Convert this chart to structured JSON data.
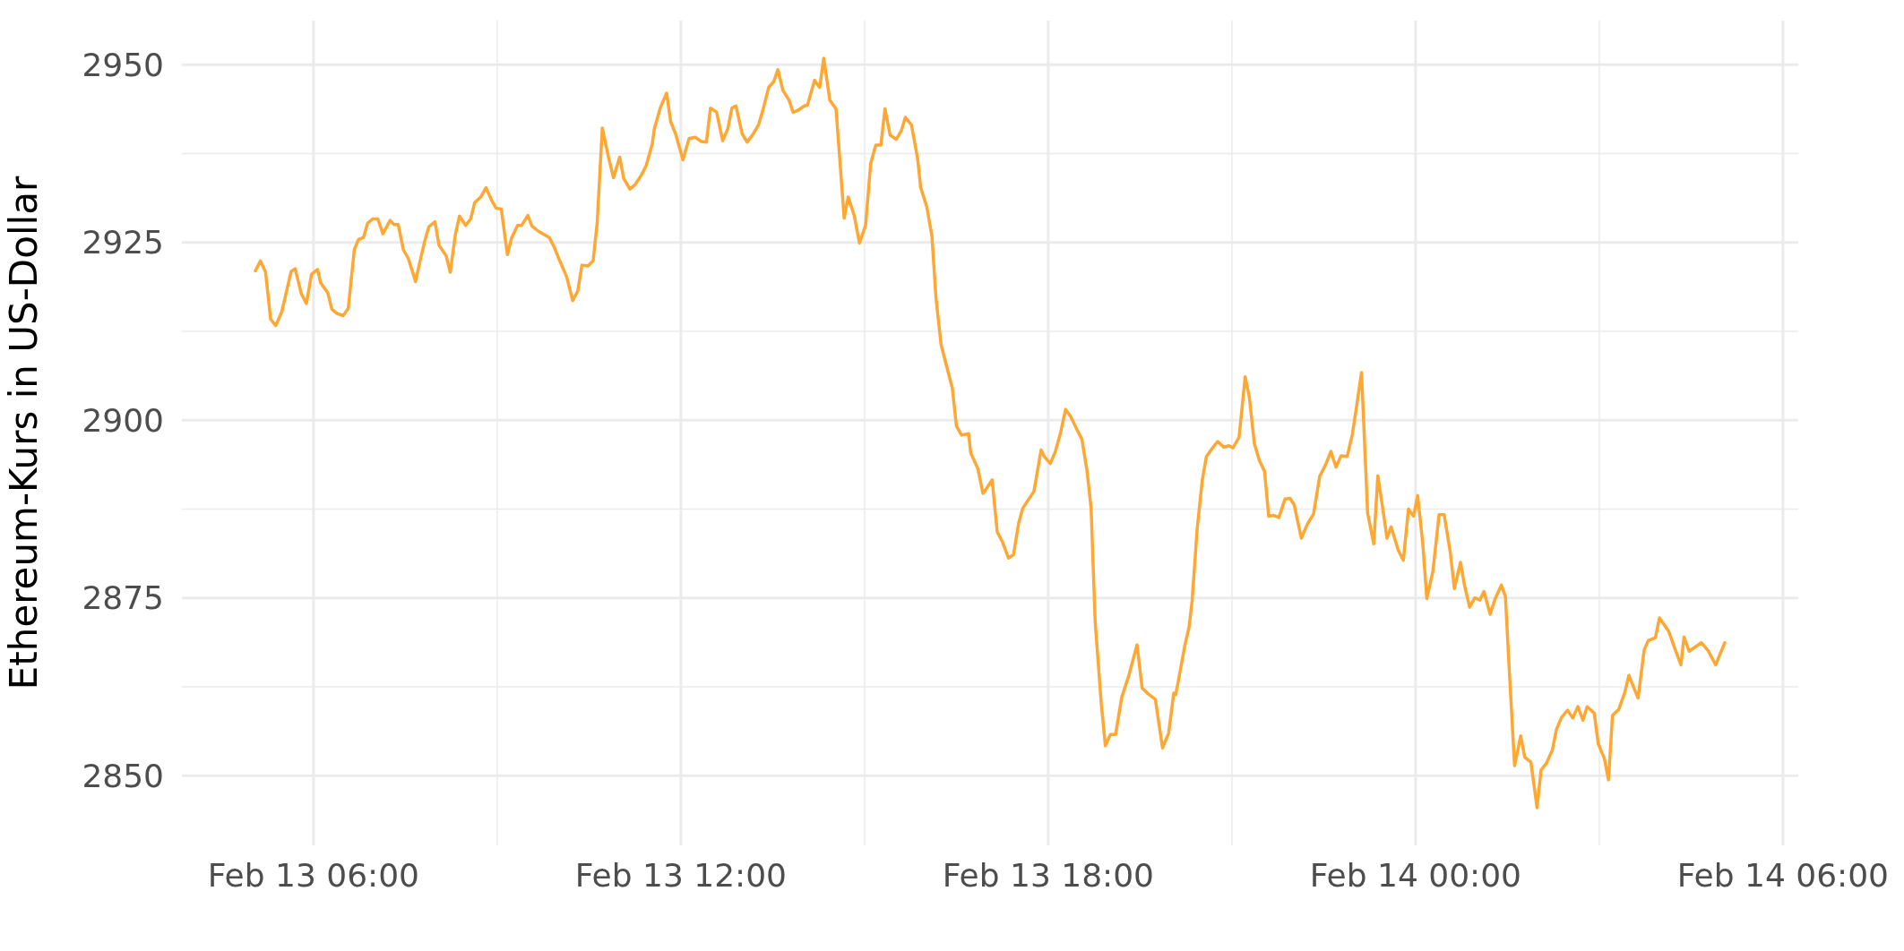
{
  "chart_data": {
    "type": "line",
    "ylabel": "Ethereum-Kurs in US-Dollar",
    "xlim": [
      "--02-13T03:51",
      "--02-14T06:15"
    ],
    "xticks": [
      {
        "value": "--02-13T06:00",
        "label": "Feb 13 06:00"
      },
      {
        "value": "--02-13T09:00",
        "label": null
      },
      {
        "value": "--02-13T12:00",
        "label": "Feb 13 12:00"
      },
      {
        "value": "--02-13T15:00",
        "label": null
      },
      {
        "value": "--02-13T18:00",
        "label": "Feb 13 18:00"
      },
      {
        "value": "--02-13T21:00",
        "label": null
      },
      {
        "value": "--02-14T00:00",
        "label": "Feb 14 00:00"
      },
      {
        "value": "--02-14T03:00",
        "label": null
      },
      {
        "value": "--02-14T06:00",
        "label": "Feb 14 06:00"
      }
    ],
    "ylim": [
      2840.2,
      2956.2
    ],
    "yticks": [
      2850,
      {
        "value": 2862.5,
        "label": null
      },
      2875,
      {
        "value": 2887.5,
        "label": null
      },
      2900,
      {
        "value": 2912.5,
        "label": null
      },
      2925,
      {
        "value": 2937.5,
        "label": null
      },
      2950
    ],
    "grid": true,
    "x": [
      "--02-13T05:03",
      "--02-13T05:08",
      "--02-13T05:13",
      "--02-13T05:18",
      "--02-13T05:23",
      "--02-13T05:29",
      "--02-13T05:38",
      "--02-13T05:42",
      "--02-13T05:48",
      "--02-13T05:53",
      "--02-13T05:58",
      "--02-13T06:04",
      "--02-13T06:07",
      "--02-13T06:14",
      "--02-13T06:18",
      "--02-13T06:23",
      "--02-13T06:29",
      "--02-13T06:34",
      "--02-13T06:40",
      "--02-13T06:44",
      "--02-13T06:49",
      "--02-13T06:53",
      "--02-13T06:58",
      "--02-13T07:03",
      "--02-13T07:08",
      "--02-13T07:15",
      "--02-13T07:19",
      "--02-13T07:23",
      "--02-13T07:28",
      "--02-13T07:33",
      "--02-13T07:40",
      "--02-13T07:44",
      "--02-13T07:49",
      "--02-13T07:53",
      "--02-13T07:59",
      "--02-13T08:03",
      "--02-13T08:10",
      "--02-13T08:14",
      "--02-13T08:19",
      "--02-13T08:23",
      "--02-13T08:29",
      "--02-13T08:34",
      "--02-13T08:38",
      "--02-13T08:44",
      "--02-13T08:49",
      "--02-13T08:55",
      "--02-13T08:59",
      "--02-13T09:04",
      "--02-13T09:10",
      "--02-13T09:14",
      "--02-13T09:20",
      "--02-13T09:24",
      "--02-13T09:30",
      "--02-13T09:34",
      "--02-13T09:40",
      "--02-13T09:45",
      "--02-13T09:51",
      "--02-13T09:56",
      "--02-13T10:01",
      "--02-13T10:08",
      "--02-13T10:14",
      "--02-13T10:19",
      "--02-13T10:23",
      "--02-13T10:29",
      "--02-13T10:34",
      "--02-13T10:38",
      "--02-13T10:43",
      "--02-13T10:49",
      "--02-13T10:54",
      "--02-13T11:00",
      "--02-13T11:04",
      "--02-13T11:10",
      "--02-13T11:15",
      "--02-13T11:21",
      "--02-13T11:26",
      "--02-13T11:32",
      "--02-13T11:34",
      "--02-13T11:40",
      "--02-13T11:46",
      "--02-13T11:50",
      "--02-13T11:55",
      "--02-13T12:02",
      "--02-13T12:08",
      "--02-13T12:14",
      "--02-13T12:20",
      "--02-13T12:25",
      "--02-13T12:29",
      "--02-13T12:35",
      "--02-13T12:41",
      "--02-13T12:46",
      "--02-13T12:50",
      "--02-13T12:54",
      "--02-13T13:00",
      "--02-13T13:05",
      "--02-13T13:11",
      "--02-13T13:16",
      "--02-13T13:20",
      "--02-13T13:26",
      "--02-13T13:31",
      "--02-13T13:35",
      "--02-13T13:40",
      "--02-13T13:46",
      "--02-13T13:50",
      "--02-13T13:55",
      "--02-13T14:01",
      "--02-13T14:04",
      "--02-13T14:11",
      "--02-13T14:16",
      "--02-13T14:20",
      "--02-13T14:26",
      "--02-13T14:32",
      "--02-13T14:35",
      "--02-13T14:40",
      "--02-13T14:44",
      "--02-13T14:50",
      "--02-13T14:55",
      "--02-13T15:01",
      "--02-13T15:06",
      "--02-13T15:11",
      "--02-13T15:16",
      "--02-13T15:20",
      "--02-13T15:25",
      "--02-13T15:31",
      "--02-13T15:36",
      "--02-13T15:40",
      "--02-13T15:46",
      "--02-13T15:52",
      "--02-13T15:55",
      "--02-13T16:01",
      "--02-13T16:06",
      "--02-13T16:10",
      "--02-13T16:15",
      "--02-13T16:22",
      "--02-13T16:26",
      "--02-13T16:30",
      "--02-13T16:35",
      "--02-13T16:42",
      "--02-13T16:44",
      "--02-13T16:51",
      "--02-13T16:56",
      "--02-13T17:01",
      "--02-13T17:05",
      "--02-13T17:10",
      "--02-13T17:15",
      "--02-13T17:21",
      "--02-13T17:26",
      "--02-13T17:31",
      "--02-13T17:35",
      "--02-13T17:46",
      "--02-13T17:53",
      "--02-13T17:56",
      "--02-13T18:02",
      "--02-13T18:07",
      "--02-13T18:12",
      "--02-13T18:17",
      "--02-13T18:22",
      "--02-13T18:28",
      "--02-13T18:33",
      "--02-13T18:38",
      "--02-13T18:42",
      "--02-13T18:46",
      "--02-13T18:52",
      "--02-13T18:56",
      "--02-13T19:01",
      "--02-13T19:06",
      "--02-13T19:12",
      "--02-13T19:19",
      "--02-13T19:27",
      "--02-13T19:32",
      "--02-13T19:38",
      "--02-13T19:45",
      "--02-13T19:52",
      "--02-13T19:58",
      "--02-13T20:03",
      "--02-13T20:05",
      "--02-13T20:14",
      "--02-13T20:18",
      "--02-13T20:21",
      "--02-13T20:26",
      "--02-13T20:31",
      "--02-13T20:35",
      "--02-13T20:41",
      "--02-13T20:46",
      "--02-13T20:52",
      "--02-13T20:57",
      "--02-13T21:01",
      "--02-13T21:07",
      "--02-13T21:13",
      "--02-13T21:17",
      "--02-13T21:22",
      "--02-13T21:27",
      "--02-13T21:32",
      "--02-13T21:36",
      "--02-13T21:41",
      "--02-13T21:46",
      "--02-13T21:52",
      "--02-13T21:57",
      "--02-13T22:01",
      "--02-13T22:08",
      "--02-13T22:14",
      "--02-13T22:20",
      "--02-13T22:26",
      "--02-13T22:32",
      "--02-13T22:37",
      "--02-13T22:42",
      "--02-13T22:47",
      "--02-13T22:53",
      "--02-13T22:58",
      "--02-13T23:02",
      "--02-13T23:07",
      "--02-13T23:13",
      "--02-13T23:19",
      "--02-13T23:23",
      "--02-13T23:28",
      "--02-13T23:32",
      "--02-13T23:36",
      "--02-13T23:43",
      "--02-13T23:48",
      "--02-13T23:53",
      "--02-13T23:58",
      "--02-14T00:02",
      "--02-14T00:07",
      "--02-14T00:11",
      "--02-14T00:17",
      "--02-14T00:23",
      "--02-14T00:28",
      "--02-14T00:34",
      "--02-14T00:38",
      "--02-14T00:44",
      "--02-14T00:48",
      "--02-14T00:53",
      "--02-14T00:58",
      "--02-14T01:03",
      "--02-14T01:07",
      "--02-14T01:13",
      "--02-14T01:18",
      "--02-14T01:24",
      "--02-14T01:28",
      "--02-14T01:32",
      "--02-14T01:37",
      "--02-14T01:43",
      "--02-14T01:47",
      "--02-14T01:53",
      "--02-14T01:59",
      "--02-14T02:03",
      "--02-14T02:08",
      "--02-14T02:14",
      "--02-14T02:18",
      "--02-14T02:23",
      "--02-14T02:29",
      "--02-14T02:34",
      "--02-14T02:39",
      "--02-14T02:44",
      "--02-14T02:48",
      "--02-14T02:55",
      "--02-14T02:59",
      "--02-14T03:05",
      "--02-14T03:09",
      "--02-14T03:13",
      "--02-14T03:19",
      "--02-14T03:25",
      "--02-14T03:29",
      "--02-14T03:38",
      "--02-14T03:44",
      "--02-14T03:48",
      "--02-14T03:55",
      "--02-14T03:59",
      "--02-14T04:08",
      "--02-14T04:14",
      "--02-14T04:20",
      "--02-14T04:23",
      "--02-14T04:28",
      "--02-14T04:40",
      "--02-14T04:47",
      "--02-14T04:54",
      "--02-14T05:03"
    ],
    "series": [
      {
        "color": "#ffa733",
        "values": [
          2921.0,
          2922.4,
          2920.8,
          2914.2,
          2913.3,
          2915.3,
          2920.9,
          2921.3,
          2917.8,
          2916.4,
          2920.5,
          2921.2,
          2919.3,
          2917.9,
          2915.6,
          2915.0,
          2914.7,
          2915.7,
          2924.0,
          2925.4,
          2925.7,
          2927.7,
          2928.3,
          2928.3,
          2926.2,
          2928.1,
          2927.5,
          2927.5,
          2924.0,
          2922.7,
          2919.5,
          2922.1,
          2925.2,
          2927.2,
          2927.9,
          2924.6,
          2923.1,
          2920.8,
          2926.1,
          2928.7,
          2927.4,
          2928.3,
          2930.6,
          2931.4,
          2932.7,
          2930.8,
          2929.8,
          2929.7,
          2923.3,
          2925.6,
          2927.4,
          2927.4,
          2928.8,
          2927.3,
          2926.6,
          2926.2,
          2925.7,
          2924.3,
          2922.5,
          2920.2,
          2916.8,
          2918.2,
          2921.8,
          2921.7,
          2922.4,
          2927.8,
          2941.1,
          2937.0,
          2934.1,
          2937.0,
          2934.0,
          2932.5,
          2933.1,
          2934.4,
          2935.8,
          2938.9,
          2941.0,
          2944.0,
          2946.0,
          2942.0,
          2940.2,
          2936.6,
          2939.6,
          2939.8,
          2939.2,
          2939.1,
          2943.9,
          2943.3,
          2939.3,
          2941.0,
          2943.9,
          2944.2,
          2940.3,
          2939.1,
          2940.3,
          2941.5,
          2943.4,
          2946.8,
          2947.6,
          2949.3,
          2946.4,
          2945.0,
          2943.3,
          2943.6,
          2944.2,
          2944.3,
          2947.8,
          2946.8,
          2950.9,
          2945.0,
          2943.8,
          2938.1,
          2928.4,
          2931.4,
          2928.7,
          2924.9,
          2927.4,
          2936.1,
          2938.7,
          2938.7,
          2943.8,
          2940.1,
          2939.5,
          2940.7,
          2942.6,
          2941.5,
          2936.8,
          2932.7,
          2930.0,
          2925.9,
          2917.2,
          2910.6,
          2906.7,
          2904.5,
          2899.2,
          2897.9,
          2898.1,
          2895.4,
          2893.2,
          2889.7,
          2890.7,
          2891.6,
          2884.3,
          2882.9,
          2880.6,
          2881.1,
          2885.5,
          2887.6,
          2890.0,
          2895.8,
          2894.9,
          2893.9,
          2895.6,
          2898.2,
          2901.5,
          2900.5,
          2898.7,
          2897.3,
          2892.9,
          2887.6,
          2871.6,
          2860.1,
          2854.2,
          2855.8,
          2855.8,
          2861.0,
          2864.1,
          2868.4,
          2862.3,
          2861.5,
          2860.7,
          2853.9,
          2856.0,
          2861.6,
          2861.4,
          2868.4,
          2870.9,
          2874.6,
          2884.8,
          2891.6,
          2894.9,
          2896.1,
          2897.0,
          2896.2,
          2896.4,
          2896.1,
          2897.6,
          2906.1,
          2903.3,
          2896.7,
          2894.3,
          2892.8,
          2886.5,
          2886.6,
          2886.3,
          2888.9,
          2889.0,
          2888.1,
          2883.4,
          2885.4,
          2886.8,
          2892.1,
          2893.8,
          2895.6,
          2893.4,
          2895.0,
          2894.9,
          2898.0,
          2901.8,
          2906.7,
          2886.9,
          2882.6,
          2892.2,
          2887.4,
          2883.4,
          2885.0,
          2881.7,
          2880.3,
          2887.5,
          2886.5,
          2889.4,
          2882.7,
          2874.9,
          2878.8,
          2886.7,
          2886.7,
          2881.4,
          2876.3,
          2880.0,
          2876.7,
          2873.7,
          2875.0,
          2874.7,
          2875.9,
          2872.7,
          2874.9,
          2876.8,
          2875.2,
          2864.3,
          2851.4,
          2855.6,
          2852.6,
          2851.9,
          2845.5,
          2850.8,
          2851.7,
          2853.6,
          2856.5,
          2858.2,
          2859.2,
          2858.1,
          2859.7,
          2857.8,
          2859.7,
          2858.8,
          2854.5,
          2852.4,
          2849.4,
          2858.5,
          2859.3,
          2861.7,
          2864.1,
          2860.9,
          2867.7,
          2869.0,
          2869.4,
          2872.2,
          2870.3,
          2867.9,
          2865.6,
          2869.5,
          2867.5,
          2868.7,
          2867.5,
          2865.6,
          2868.7
        ]
      }
    ]
  }
}
